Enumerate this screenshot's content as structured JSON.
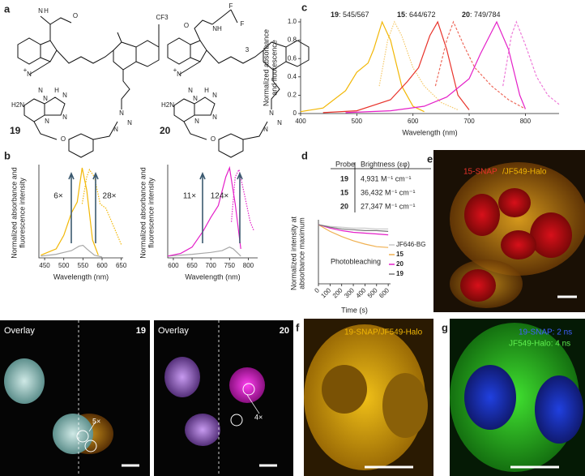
{
  "panel_labels": [
    "a",
    "b",
    "c",
    "d",
    "e",
    "f",
    "g"
  ],
  "structures": [
    {
      "label": "19",
      "atoms": [
        "N",
        "H",
        "O",
        "CF3",
        "N",
        "+",
        "N",
        "H2N",
        "N",
        "N",
        "N",
        "N",
        "H",
        "N",
        "N",
        "N",
        "O"
      ]
    },
    {
      "label": "20",
      "atoms": [
        "F",
        "F",
        "NH",
        "O",
        "N",
        "+",
        "N",
        "H2N",
        "N",
        "N",
        "N",
        "N",
        "H",
        "N",
        "N",
        "N",
        "O",
        "3"
      ]
    }
  ],
  "chart_data": [
    {
      "type": "line",
      "xlabel": "Wavelength (nm)",
      "ylabel": [
        "Normalized absorbance and",
        "fluorescence intensity"
      ],
      "xlim": [
        435,
        655
      ],
      "ylim": [
        0,
        1
      ],
      "xticks": [
        450,
        500,
        550,
        600,
        650
      ],
      "annotations": [
        "6×",
        "28×"
      ],
      "series": [
        {
          "color": "#a8a8a8",
          "style": "solid",
          "x": [
            440,
            480,
            500,
            520,
            540,
            550,
            560,
            580,
            600
          ],
          "values": [
            0.02,
            0.04,
            0.06,
            0.08,
            0.13,
            0.14,
            0.1,
            0.03,
            0.01
          ]
        },
        {
          "color": "#f2b705",
          "style": "solid",
          "x": [
            440,
            480,
            500,
            520,
            535,
            548,
            560,
            575,
            590
          ],
          "values": [
            0.03,
            0.1,
            0.25,
            0.5,
            0.62,
            1.0,
            0.75,
            0.2,
            0.03
          ]
        },
        {
          "color": "#f2b705",
          "style": "dotted",
          "x": [
            548,
            560,
            567,
            580,
            595,
            610,
            630,
            650
          ],
          "values": [
            0.6,
            0.9,
            0.98,
            0.9,
            0.6,
            0.55,
            0.35,
            0.15
          ]
        }
      ]
    },
    {
      "type": "line",
      "xlabel": "Wavelength (nm)",
      "ylabel": [
        "Normalized absorbance and",
        "fluorescence intensity"
      ],
      "xlim": [
        585,
        825
      ],
      "ylim": [
        0,
        1
      ],
      "xticks": [
        600,
        650,
        700,
        750,
        800
      ],
      "annotations": [
        "11×",
        "124×"
      ],
      "series": [
        {
          "color": "#a8a8a8",
          "style": "solid",
          "x": [
            585,
            650,
            700,
            730,
            750,
            760,
            780
          ],
          "values": [
            0.02,
            0.04,
            0.06,
            0.08,
            0.12,
            0.1,
            0.02
          ]
        },
        {
          "color": "#e41fc8",
          "style": "solid",
          "x": [
            585,
            620,
            650,
            680,
            700,
            720,
            740,
            750,
            765,
            780
          ],
          "values": [
            0.02,
            0.05,
            0.12,
            0.3,
            0.45,
            0.58,
            0.9,
            1.0,
            0.6,
            0.1
          ]
        },
        {
          "color": "#e41fc8",
          "style": "dotted",
          "x": [
            755,
            765,
            775,
            790,
            805,
            815
          ],
          "values": [
            0.4,
            0.9,
            0.98,
            0.7,
            0.4,
            0.3
          ]
        }
      ]
    },
    {
      "type": "line",
      "xlabel": "Wavelength (nm)",
      "ylabel": [
        "Normalized absorbance",
        "and fluorescence"
      ],
      "xlim": [
        400,
        860
      ],
      "ylim": [
        0,
        1
      ],
      "xticks": [
        400,
        500,
        600,
        700,
        800
      ],
      "yticks": [
        0,
        0.2,
        0.4,
        0.6,
        0.8,
        {
          "value": 1,
          "label": "1.0"
        }
      ],
      "annotations": [
        {
          "probe": "19",
          "text": ": 545/567"
        },
        {
          "probe": "15",
          "text": ": 644/672"
        },
        {
          "probe": "20",
          "text": ": 749/784"
        }
      ],
      "series": [
        {
          "color": "#f2b705",
          "style": "solid",
          "x": [
            400,
            440,
            480,
            500,
            520,
            530,
            545,
            560,
            580,
            600,
            620
          ],
          "values": [
            0.02,
            0.06,
            0.25,
            0.45,
            0.55,
            0.7,
            1.0,
            0.8,
            0.3,
            0.08,
            0.02
          ]
        },
        {
          "color": "#f5c96a",
          "style": "dotted",
          "x": [
            540,
            555,
            567,
            580,
            600,
            620,
            650,
            680
          ],
          "values": [
            0.3,
            0.8,
            1.0,
            0.85,
            0.5,
            0.3,
            0.12,
            0.04
          ]
        },
        {
          "color": "#e8322a",
          "style": "solid",
          "x": [
            440,
            500,
            560,
            590,
            610,
            630,
            644,
            660,
            680,
            700
          ],
          "values": [
            0.01,
            0.03,
            0.15,
            0.35,
            0.5,
            0.85,
            1.0,
            0.7,
            0.2,
            0.04
          ]
        },
        {
          "color": "#ee6a5c",
          "style": "dashed",
          "x": [
            640,
            660,
            672,
            690,
            710,
            740,
            770,
            800
          ],
          "values": [
            0.3,
            0.8,
            1.0,
            0.75,
            0.5,
            0.3,
            0.15,
            0.05
          ]
        },
        {
          "color": "#e41fc8",
          "style": "solid",
          "x": [
            480,
            560,
            620,
            660,
            700,
            720,
            749,
            770,
            790,
            800
          ],
          "values": [
            0.01,
            0.03,
            0.08,
            0.18,
            0.38,
            0.65,
            1.0,
            0.7,
            0.2,
            0.05
          ]
        },
        {
          "color": "#ee7ad8",
          "style": "dashed",
          "x": [
            760,
            775,
            784,
            800,
            820,
            840,
            860
          ],
          "values": [
            0.3,
            0.85,
            1.0,
            0.75,
            0.4,
            0.2,
            0.1
          ]
        }
      ]
    },
    {
      "type": "line",
      "xlabel": "Time (s)",
      "ylabel": [
        "Normalized intensity at",
        "absorbance maximum"
      ],
      "xlim": [
        0,
        620
      ],
      "ylim": [
        0.3,
        1.02
      ],
      "xticks": [
        0,
        100,
        200,
        300,
        400,
        500,
        600
      ],
      "annotations": [
        "Photobleaching"
      ],
      "series": [
        {
          "name": "JF646-BG",
          "color": "#c8c8c8",
          "style": "solid",
          "x": [
            0,
            100,
            200,
            300,
            400,
            500,
            600
          ],
          "values": [
            1.0,
            0.98,
            0.97,
            0.96,
            0.96,
            0.95,
            0.95
          ]
        },
        {
          "name": "15",
          "color": "#f0b050",
          "style": "solid",
          "x": [
            0,
            100,
            200,
            300,
            400,
            500,
            600
          ],
          "values": [
            1.0,
            0.92,
            0.86,
            0.81,
            0.77,
            0.74,
            0.73
          ]
        },
        {
          "name": "20",
          "color": "#e41fc8",
          "style": "solid",
          "x": [
            0,
            100,
            200,
            300,
            400,
            500,
            600
          ],
          "values": [
            1.0,
            0.96,
            0.93,
            0.91,
            0.9,
            0.89,
            0.88
          ]
        },
        {
          "name": "19",
          "color": "#777777",
          "style": "solid",
          "x": [
            0,
            100,
            200,
            300,
            400,
            500,
            600
          ],
          "values": [
            1.0,
            0.97,
            0.95,
            0.94,
            0.93,
            0.93,
            0.92
          ]
        }
      ]
    }
  ],
  "table": {
    "header": [
      "Probe",
      "Brightness (εφ)"
    ],
    "rows": [
      [
        "19",
        "4,931 M⁻¹ cm⁻¹"
      ],
      [
        "15",
        "36,432 M⁻¹ cm⁻¹"
      ],
      [
        "20",
        "27,347 M⁻¹ cm⁻¹"
      ]
    ]
  },
  "images": {
    "e": {
      "caption_a": "15-SNAP",
      "caption_b": "/JF549-Halo"
    },
    "overlay_19": {
      "title": "Overlay",
      "probe": "19",
      "ratio": "5×"
    },
    "overlay_20": {
      "title": "Overlay",
      "probe": "20",
      "ratio": "4×"
    },
    "f": {
      "caption": "19-SNAP/JF549-Halo"
    },
    "g": {
      "caption_a": "19-SNAP: 2 ns",
      "caption_b": "JF549-Halo: 4 ns"
    }
  }
}
